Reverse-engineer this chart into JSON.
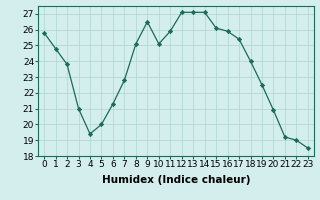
{
  "x": [
    0,
    1,
    2,
    3,
    4,
    5,
    6,
    7,
    8,
    9,
    10,
    11,
    12,
    13,
    14,
    15,
    16,
    17,
    18,
    19,
    20,
    21,
    22,
    23
  ],
  "y": [
    25.8,
    24.8,
    23.8,
    21.0,
    19.4,
    20.0,
    21.3,
    22.8,
    25.1,
    26.5,
    25.1,
    25.9,
    27.1,
    27.1,
    27.1,
    26.1,
    25.9,
    25.4,
    24.0,
    22.5,
    20.9,
    19.2,
    19.0,
    18.5
  ],
  "line_color": "#1a6b5a",
  "marker": "D",
  "marker_size": 2.2,
  "bg_color": "#d4eeee",
  "grid_color": "#aed4d4",
  "xlabel": "Humidex (Indice chaleur)",
  "ylim": [
    18,
    27.5
  ],
  "xlim": [
    -0.5,
    23.5
  ],
  "yticks": [
    18,
    19,
    20,
    21,
    22,
    23,
    24,
    25,
    26,
    27
  ],
  "xticks": [
    0,
    1,
    2,
    3,
    4,
    5,
    6,
    7,
    8,
    9,
    10,
    11,
    12,
    13,
    14,
    15,
    16,
    17,
    18,
    19,
    20,
    21,
    22,
    23
  ],
  "xtick_labels": [
    "0",
    "1",
    "2",
    "3",
    "4",
    "5",
    "6",
    "7",
    "8",
    "9",
    "10",
    "11",
    "12",
    "13",
    "14",
    "15",
    "16",
    "17",
    "18",
    "19",
    "20",
    "21",
    "22",
    "23"
  ],
  "font_size": 6.5,
  "xlabel_fontsize": 7.5
}
